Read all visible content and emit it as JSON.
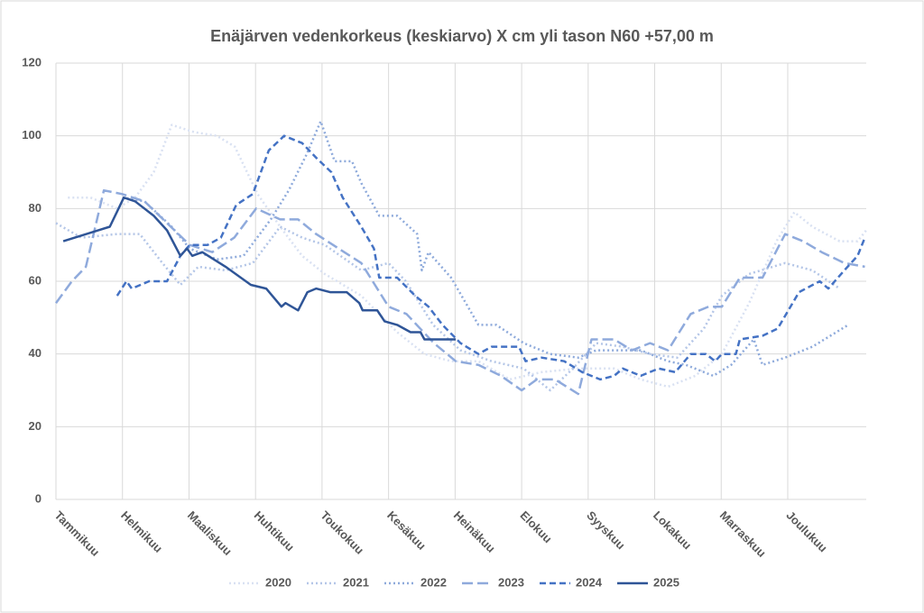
{
  "chart_data": {
    "type": "line",
    "title": "Enäjärven vedenkorkeus (keskiarvo) X cm yli tason N60 +57,00 m",
    "xlim": [
      0,
      12.18
    ],
    "xticks": [
      {
        "value": 0,
        "label": "Tammikuu"
      },
      {
        "value": 1,
        "label": "Helmikuu"
      },
      {
        "value": 2,
        "label": "Maaliskuu"
      },
      {
        "value": 3,
        "label": "Huhtikuu"
      },
      {
        "value": 4,
        "label": "Toukokuu"
      },
      {
        "value": 5,
        "label": "Kesäkuu"
      },
      {
        "value": 6,
        "label": "Heinäkuu"
      },
      {
        "value": 7,
        "label": "Elokuu"
      },
      {
        "value": 8,
        "label": "Syyskuu"
      },
      {
        "value": 9,
        "label": "Lokakuu"
      },
      {
        "value": 10,
        "label": "Marraskuu"
      },
      {
        "value": 11,
        "label": "Joulukuu"
      }
    ],
    "ylim": [
      0,
      120
    ],
    "yticks": [
      0,
      20,
      40,
      60,
      80,
      100,
      120
    ],
    "grid": true,
    "legend": "bottom",
    "series": [
      {
        "name": "2020",
        "color": "#d9e1f2",
        "dash": "dot",
        "x": [
          0.18,
          0.52,
          0.92,
          1.19,
          1.47,
          1.74,
          2.08,
          2.42,
          2.69,
          3.03,
          3.37,
          3.7,
          4.04,
          4.59,
          5.13,
          5.54,
          5.94,
          6.35,
          6.82,
          7.3,
          7.85,
          8.39,
          8.79,
          9.2,
          9.61,
          10.01,
          10.42,
          10.83,
          11.1,
          11.37,
          11.78,
          12.05,
          12.18
        ],
        "values": [
          83,
          83,
          80,
          83,
          90,
          103,
          101,
          100,
          97,
          84,
          75,
          67,
          62,
          56,
          46,
          40,
          38,
          38,
          33,
          35,
          36,
          36,
          33,
          31,
          34,
          40,
          54,
          71,
          79,
          75,
          71,
          71,
          74
        ]
      },
      {
        "name": "2021",
        "color": "#b4c6e7",
        "dash": "dot",
        "x": [
          0,
          0.38,
          0.92,
          1.26,
          1.6,
          1.87,
          2.14,
          2.55,
          2.96,
          3.37,
          3.7,
          4.04,
          4.59,
          5.0,
          5.26,
          5.67,
          6.08,
          6.55,
          7.03,
          7.43,
          7.77,
          8.12,
          8.52,
          8.93,
          9.34,
          9.74,
          10.01,
          10.42,
          10.96,
          11.37,
          11.78
        ],
        "values": [
          76,
          72,
          73,
          73,
          65,
          59,
          64,
          63,
          65,
          75,
          72,
          70,
          63,
          65,
          60,
          48,
          41,
          38,
          36,
          30,
          36,
          43,
          42,
          40,
          39,
          47,
          56,
          62,
          65,
          63,
          58
        ]
      },
      {
        "name": "2022",
        "color": "#8eaadb",
        "dash": "dot",
        "x": [
          1.0,
          1.33,
          1.74,
          2.01,
          2.42,
          2.82,
          3.23,
          3.5,
          3.77,
          3.98,
          4.19,
          4.45,
          4.59,
          4.86,
          5.13,
          5.43,
          5.5,
          5.6,
          5.94,
          6.35,
          6.62,
          7.03,
          7.43,
          7.85,
          8.12,
          8.52,
          8.79,
          9.2,
          9.47,
          9.88,
          10.15,
          10.49,
          10.62,
          10.96,
          11.37,
          11.91
        ],
        "values": [
          83,
          82,
          75,
          69,
          66,
          67,
          77,
          85,
          95,
          104,
          93,
          93,
          87,
          78,
          78,
          73,
          63,
          68,
          61,
          48,
          48,
          43,
          40,
          39,
          41,
          41,
          41,
          38,
          37,
          34,
          37,
          44,
          37,
          39,
          42,
          48
        ]
      },
      {
        "name": "2023",
        "color": "#8faadc",
        "dash": "longdash",
        "x": [
          0,
          0.24,
          0.45,
          0.72,
          0.99,
          1.33,
          1.67,
          2.01,
          2.35,
          2.68,
          3.01,
          3.37,
          3.64,
          3.91,
          4.25,
          4.59,
          5.0,
          5.27,
          5.68,
          6.01,
          6.35,
          6.69,
          7.0,
          7.23,
          7.5,
          7.85,
          8.05,
          8.39,
          8.66,
          8.93,
          9.2,
          9.54,
          9.81,
          10.01,
          10.28,
          10.62,
          10.96,
          11.23,
          11.51,
          11.85,
          12.16
        ],
        "values": [
          54,
          60,
          64,
          85,
          84,
          82,
          76,
          70,
          68,
          72,
          80,
          77,
          77,
          73,
          69,
          65,
          53,
          51,
          43,
          38,
          37,
          34,
          30,
          33,
          33,
          29,
          44,
          44,
          41,
          43,
          41,
          51,
          53,
          53,
          61,
          61,
          73,
          71,
          68,
          65,
          64
        ]
      },
      {
        "name": "2024",
        "color": "#4472c4",
        "dash": "dash",
        "x": [
          0.92,
          1.06,
          1.14,
          1.4,
          1.67,
          1.87,
          2.01,
          2.28,
          2.48,
          2.71,
          2.96,
          3.2,
          3.43,
          3.7,
          3.91,
          4.14,
          4.31,
          4.59,
          4.78,
          4.86,
          5.13,
          5.4,
          5.6,
          5.81,
          6.08,
          6.35,
          6.55,
          6.96,
          7.06,
          7.3,
          7.64,
          7.91,
          8.18,
          8.39,
          8.52,
          8.79,
          9.06,
          9.31,
          9.54,
          9.77,
          9.91,
          10.01,
          10.22,
          10.28,
          10.62,
          10.85,
          11.17,
          11.48,
          11.61,
          11.85,
          12.05,
          12.16
        ],
        "values": [
          56,
          60,
          58,
          60,
          60,
          67,
          70,
          70,
          72,
          81,
          84,
          96,
          100,
          98,
          94,
          90,
          83,
          75,
          69,
          61,
          61,
          56,
          53,
          48,
          43,
          40,
          42,
          42,
          38,
          39,
          38,
          35,
          33,
          34,
          36,
          34,
          36,
          35,
          40,
          40,
          38,
          40,
          40,
          44,
          45,
          47,
          57,
          60,
          58,
          63,
          67,
          72
        ]
      },
      {
        "name": "2025",
        "color": "#2f5597",
        "dash": "solid",
        "x": [
          0.11,
          0.81,
          1.02,
          1.19,
          1.47,
          1.67,
          1.87,
          1.97,
          2.05,
          2.2,
          2.55,
          2.93,
          3.16,
          3.39,
          3.45,
          3.64,
          3.78,
          3.91,
          4.12,
          4.37,
          4.56,
          4.61,
          4.83,
          4.94,
          5.13,
          5.33,
          5.48,
          5.54,
          6.01
        ],
        "values": [
          71,
          75,
          83,
          82,
          78,
          74,
          67,
          69,
          67,
          68,
          64,
          59,
          58,
          53,
          54,
          52,
          57,
          58,
          57,
          57,
          54,
          52,
          52,
          49,
          48,
          46,
          46,
          44,
          44
        ]
      }
    ]
  }
}
